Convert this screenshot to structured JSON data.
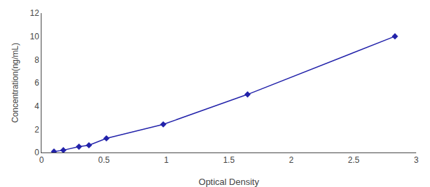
{
  "chart_data": {
    "type": "line",
    "x": [
      0.1,
      0.175,
      0.3,
      0.38,
      0.52,
      0.975,
      1.65,
      2.83
    ],
    "values": [
      0.08,
      0.2,
      0.5,
      0.62,
      1.22,
      2.42,
      5.0,
      10.0
    ],
    "color": "#2222aa",
    "marker": "diamond",
    "xlabel": "Optical Density",
    "ylabel": "Concentration(ng/mL)",
    "xlim": [
      0,
      3.0
    ],
    "ylim": [
      0,
      12
    ],
    "xticks": [
      0,
      0.5,
      1,
      1.5,
      2,
      2.5,
      3
    ],
    "yticks": [
      0,
      2,
      4,
      6,
      8,
      10,
      12
    ],
    "grid": false
  }
}
